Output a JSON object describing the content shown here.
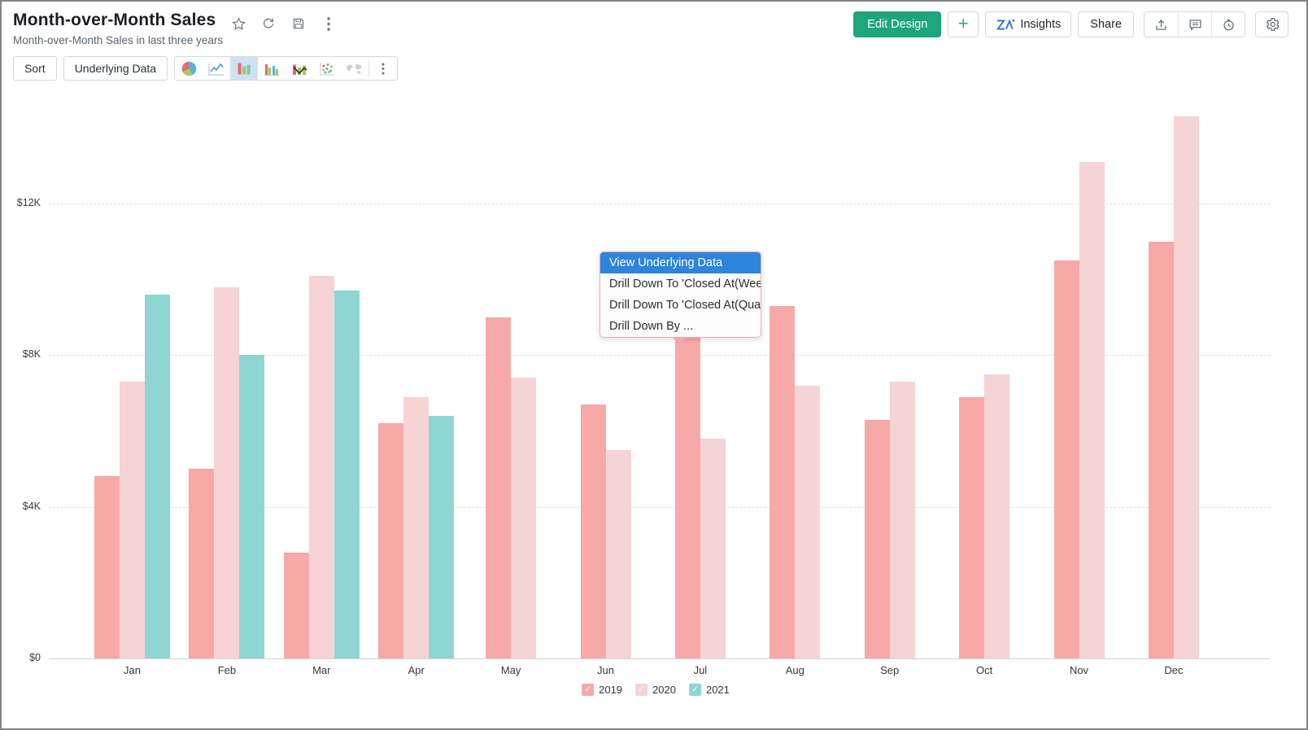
{
  "header": {
    "title": "Month-over-Month Sales",
    "subtitle": "Month-over-Month Sales in last three years",
    "title_action_icons": [
      "favorite-star-icon",
      "refresh-icon",
      "save-icon",
      "more-kebab-icon"
    ],
    "buttons": {
      "edit_design": "Edit Design",
      "add": "+",
      "insights": "Insights",
      "share": "Share",
      "right_icons": [
        "export-icon",
        "comment-icon",
        "alert-clock-icon",
        "settings-gear-icon"
      ]
    }
  },
  "toolbar": {
    "sort_label": "Sort",
    "underlying_data_label": "Underlying Data",
    "chart_types": [
      "pie",
      "line",
      "bar",
      "grouped-bar",
      "bar-line-combo",
      "scatter",
      "map"
    ],
    "selected_chart_type": "bar"
  },
  "context_menu": {
    "items": [
      {
        "label": "View Underlying Data",
        "highlighted": true
      },
      {
        "label": "Drill Down To 'Closed At(Wee...",
        "highlighted": false
      },
      {
        "label": "Drill Down To 'Closed At(Quar...",
        "highlighted": false
      },
      {
        "label": "Drill Down By ...",
        "highlighted": false
      }
    ]
  },
  "chart_data": {
    "type": "bar",
    "title": "Month-over-Month Sales",
    "categories": [
      "Jan",
      "Feb",
      "Mar",
      "Apr",
      "May",
      "Jun",
      "Jul",
      "Aug",
      "Sep",
      "Oct",
      "Nov",
      "Dec"
    ],
    "series": [
      {
        "name": "2019",
        "color": "#f7a9a8",
        "values": [
          4.8,
          5.0,
          2.8,
          6.2,
          9.0,
          6.7,
          8.5,
          9.3,
          6.3,
          6.9,
          10.5,
          11.0
        ]
      },
      {
        "name": "2020",
        "color": "#f6d3d4",
        "values": [
          7.3,
          9.8,
          10.1,
          6.9,
          7.4,
          5.5,
          5.8,
          7.2,
          7.3,
          7.5,
          13.1,
          14.3
        ]
      },
      {
        "name": "2021",
        "color": "#8fd6d2",
        "values": [
          9.6,
          8.0,
          9.7,
          6.4,
          null,
          null,
          null,
          null,
          null,
          null,
          null,
          null
        ]
      }
    ],
    "y_ticks": {
      "labels": [
        "$0",
        "$4K",
        "$8K",
        "$12K"
      ],
      "values": [
        0,
        4,
        8,
        12
      ]
    },
    "ylim": [
      0,
      15
    ],
    "unit": "K",
    "grid": "horizontal-dashed",
    "legend_position": "bottom",
    "legend_checkmark": "✓"
  },
  "colors": {
    "menu_highlight": "#2d84dc",
    "menu_border": "#f5acab",
    "primary_green": "#1da57c",
    "selected_chart_type_bg": "#cfe2f2"
  }
}
